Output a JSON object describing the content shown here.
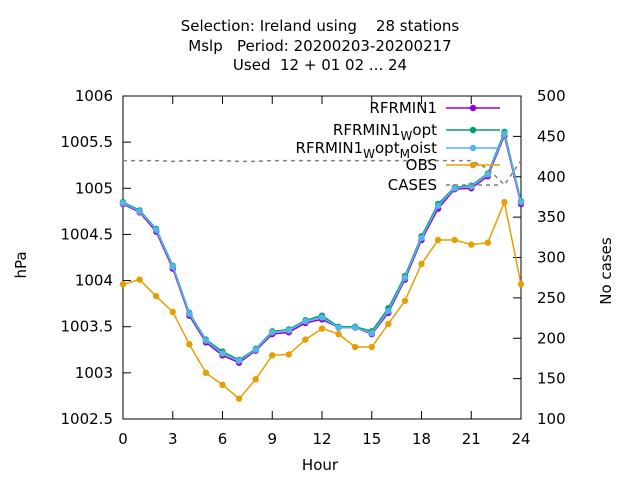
{
  "title_lines": [
    "Selection: Ireland using    28 stations",
    "Mslp   Period: 20200203-20200217",
    "Used  12 + 01 02 ... 24"
  ],
  "colors": {
    "RFRMIN1": "#9400d3",
    "RFRMIN1_Wopt": "#009e73",
    "RFRMIN1_WoptMoist": "#56b4e9",
    "OBS": "#e69f00",
    "CASES": "#808080"
  },
  "chart_data": {
    "type": "line",
    "xlabel": "Hour",
    "ylabel": "hPa",
    "y2label": "No cases",
    "xlim": [
      0,
      24
    ],
    "ylim": [
      1002.5,
      1006
    ],
    "y2lim": [
      100,
      500
    ],
    "xticks": [
      "0",
      "3",
      "6",
      "9",
      "12",
      "15",
      "18",
      "21",
      "24"
    ],
    "yticks": [
      "1002.5",
      "1003",
      "1003.5",
      "1004",
      "1004.5",
      "1005",
      "1005.5",
      "1006"
    ],
    "y2ticks": [
      "100",
      "150",
      "200",
      "250",
      "300",
      "350",
      "400",
      "450",
      "500"
    ],
    "legend_position": "top-right",
    "x": [
      0,
      1,
      2,
      3,
      4,
      5,
      6,
      7,
      8,
      9,
      10,
      11,
      12,
      13,
      14,
      15,
      16,
      17,
      18,
      19,
      20,
      21,
      22,
      23,
      24
    ],
    "series": [
      {
        "name": "RFRMIN1",
        "key": "RFRMIN1",
        "axis": "y",
        "values": [
          1004.83,
          1004.74,
          1004.53,
          1004.13,
          1003.62,
          1003.33,
          1003.19,
          1003.11,
          1003.24,
          1003.42,
          1003.44,
          1003.54,
          1003.58,
          1003.49,
          1003.49,
          1003.42,
          1003.65,
          1004.01,
          1004.44,
          1004.78,
          1004.99,
          1005.0,
          1005.13,
          1005.57,
          1004.83
        ]
      },
      {
        "name": "RFRMIN1_Wopt",
        "key": "RFRMIN1_Wopt",
        "axis": "y",
        "values": [
          1004.85,
          1004.76,
          1004.56,
          1004.16,
          1003.65,
          1003.36,
          1003.23,
          1003.14,
          1003.26,
          1003.45,
          1003.47,
          1003.57,
          1003.62,
          1003.5,
          1003.5,
          1003.45,
          1003.7,
          1004.05,
          1004.48,
          1004.83,
          1005.01,
          1005.03,
          1005.16,
          1005.61,
          1004.86
        ]
      },
      {
        "name": "RFRMIN1_WoptMoist",
        "key": "RFRMIN1_WoptMoist",
        "axis": "y",
        "values": [
          1004.84,
          1004.75,
          1004.55,
          1004.15,
          1003.64,
          1003.35,
          1003.21,
          1003.13,
          1003.25,
          1003.44,
          1003.46,
          1003.56,
          1003.6,
          1003.49,
          1003.49,
          1003.43,
          1003.67,
          1004.03,
          1004.46,
          1004.81,
          1005.0,
          1005.02,
          1005.15,
          1005.59,
          1004.85
        ]
      },
      {
        "name": "OBS",
        "key": "OBS",
        "axis": "y",
        "values": [
          1003.96,
          1004.01,
          1003.83,
          1003.66,
          1003.31,
          1003.0,
          1002.87,
          1002.72,
          1002.93,
          1003.19,
          1003.2,
          1003.36,
          1003.48,
          1003.42,
          1003.28,
          1003.28,
          1003.53,
          1003.78,
          1004.18,
          1004.44,
          1004.44,
          1004.39,
          1004.41,
          1004.85,
          1003.96
        ]
      },
      {
        "name": "CASES",
        "key": "CASES",
        "axis": "y2",
        "values": [
          420,
          420,
          420,
          419,
          420,
          420,
          420,
          419,
          419,
          420,
          420,
          420,
          420,
          420,
          420,
          420,
          420,
          420,
          420,
          420,
          420,
          420,
          410,
          390,
          420
        ]
      }
    ],
    "legend_labels": [
      {
        "key": "RFRMIN1",
        "main": "RFRMIN1",
        "sub1": "",
        "mid": "",
        "sub2": "",
        "tail": ""
      },
      {
        "key": "RFRMIN1_Wopt",
        "main": "RFRMIN1",
        "sub1": "W",
        "mid": "opt",
        "sub2": "",
        "tail": ""
      },
      {
        "key": "RFRMIN1_WoptMoist",
        "main": "RFRMIN1",
        "sub1": "W",
        "mid": "opt",
        "sub2": "M",
        "tail": "oist"
      },
      {
        "key": "OBS",
        "main": "OBS",
        "sub1": "",
        "mid": "",
        "sub2": "",
        "tail": ""
      },
      {
        "key": "CASES",
        "main": "CASES",
        "sub1": "",
        "mid": "",
        "sub2": "",
        "tail": ""
      }
    ]
  }
}
